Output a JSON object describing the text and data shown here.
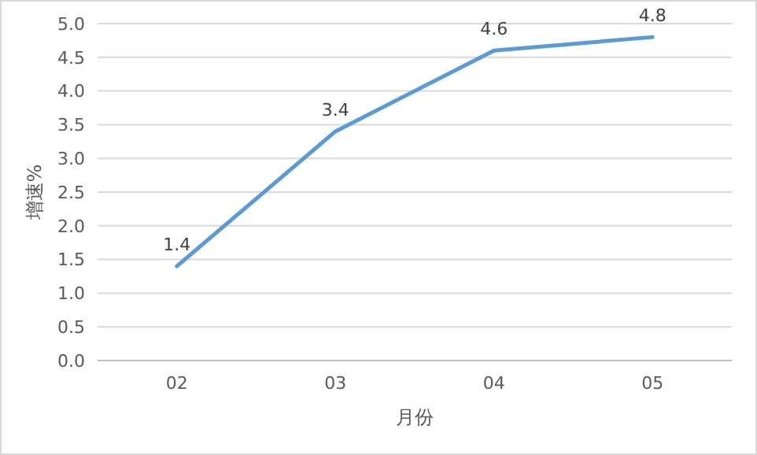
{
  "chart_data": {
    "type": "line",
    "xlabel": "月份",
    "ylabel": "增速%",
    "categories": [
      "02",
      "03",
      "04",
      "05"
    ],
    "series": [
      {
        "color": "#5b9bd5",
        "values": [
          1.4,
          3.4,
          4.6,
          4.8
        ]
      }
    ],
    "ylim": [
      0,
      5
    ],
    "yticks": [
      {
        "value": 0,
        "label": "0.0"
      },
      {
        "value": 0.5,
        "label": "0.5"
      },
      {
        "value": 1,
        "label": "1.0"
      },
      {
        "value": 1.5,
        "label": "1.5"
      },
      {
        "value": 2,
        "label": "2.0"
      },
      {
        "value": 2.5,
        "label": "2.5"
      },
      {
        "value": 3,
        "label": "3.0"
      },
      {
        "value": 3.5,
        "label": "3.5"
      },
      {
        "value": 4,
        "label": "4.0"
      },
      {
        "value": 4.5,
        "label": "4.5"
      },
      {
        "value": 5,
        "label": "5.0"
      }
    ],
    "grid": "y",
    "data_labels": true
  }
}
